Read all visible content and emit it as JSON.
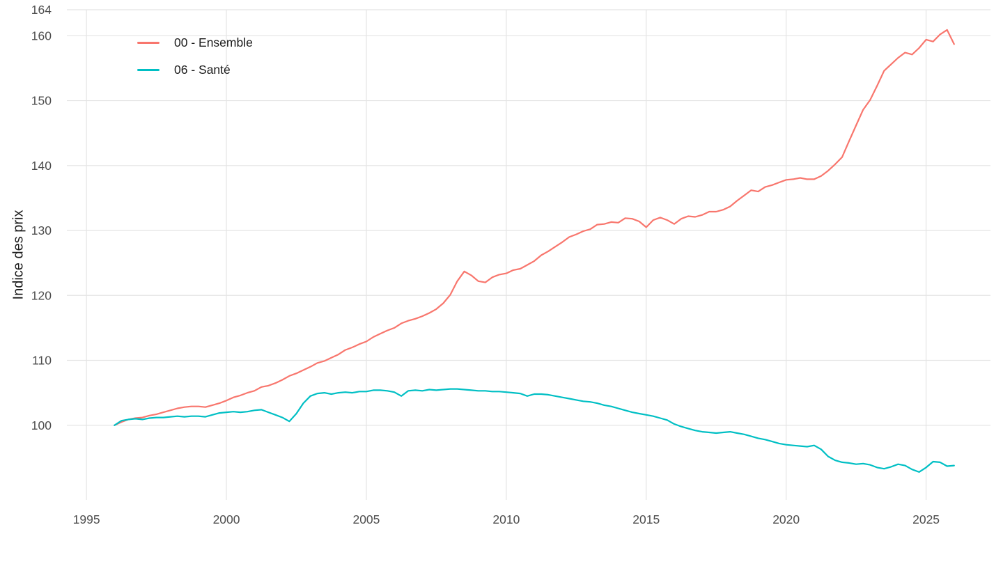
{
  "chart_data": {
    "type": "line",
    "title": "",
    "xlabel": "",
    "ylabel": "Indice des prix",
    "grid": true,
    "legend_position": "top-left-inside",
    "x_ticks": [
      1995,
      2000,
      2005,
      2010,
      2015,
      2020,
      2025
    ],
    "y_ticks": [
      100,
      110,
      120,
      130,
      140,
      150,
      160,
      164
    ],
    "x_range": [
      1994.3,
      2027.3
    ],
    "y_range": [
      88.5,
      164
    ],
    "colors": {
      "background": "#ffffff",
      "grid": "#e4e4e4",
      "tick_text": "#4d4d4d",
      "axis_title_text": "#1a1a1a"
    },
    "series": [
      {
        "name": "00 - Ensemble",
        "color": "#F8766D",
        "points": [
          [
            1996.0,
            100.0
          ],
          [
            1996.25,
            100.5
          ],
          [
            1996.5,
            100.9
          ],
          [
            1996.75,
            101.1
          ],
          [
            1997.0,
            101.2
          ],
          [
            1997.25,
            101.5
          ],
          [
            1997.5,
            101.7
          ],
          [
            1997.75,
            102.0
          ],
          [
            1998.0,
            102.3
          ],
          [
            1998.25,
            102.6
          ],
          [
            1998.5,
            102.8
          ],
          [
            1998.75,
            102.9
          ],
          [
            1999.0,
            102.9
          ],
          [
            1999.25,
            102.8
          ],
          [
            1999.5,
            103.1
          ],
          [
            1999.75,
            103.4
          ],
          [
            2000.0,
            103.8
          ],
          [
            2000.25,
            104.3
          ],
          [
            2000.5,
            104.6
          ],
          [
            2000.75,
            105.0
          ],
          [
            2001.0,
            105.3
          ],
          [
            2001.25,
            105.9
          ],
          [
            2001.5,
            106.1
          ],
          [
            2001.75,
            106.5
          ],
          [
            2002.0,
            107.0
          ],
          [
            2002.25,
            107.6
          ],
          [
            2002.5,
            108.0
          ],
          [
            2002.75,
            108.5
          ],
          [
            2003.0,
            109.0
          ],
          [
            2003.25,
            109.6
          ],
          [
            2003.5,
            109.9
          ],
          [
            2003.75,
            110.4
          ],
          [
            2004.0,
            110.9
          ],
          [
            2004.25,
            111.6
          ],
          [
            2004.5,
            112.0
          ],
          [
            2004.75,
            112.5
          ],
          [
            2005.0,
            112.9
          ],
          [
            2005.25,
            113.6
          ],
          [
            2005.5,
            114.1
          ],
          [
            2005.75,
            114.6
          ],
          [
            2006.0,
            115.0
          ],
          [
            2006.25,
            115.7
          ],
          [
            2006.5,
            116.1
          ],
          [
            2006.75,
            116.4
          ],
          [
            2007.0,
            116.8
          ],
          [
            2007.25,
            117.3
          ],
          [
            2007.5,
            117.9
          ],
          [
            2007.75,
            118.8
          ],
          [
            2008.0,
            120.1
          ],
          [
            2008.25,
            122.2
          ],
          [
            2008.5,
            123.7
          ],
          [
            2008.75,
            123.1
          ],
          [
            2009.0,
            122.2
          ],
          [
            2009.25,
            122.0
          ],
          [
            2009.5,
            122.8
          ],
          [
            2009.75,
            123.2
          ],
          [
            2010.0,
            123.4
          ],
          [
            2010.25,
            123.9
          ],
          [
            2010.5,
            124.1
          ],
          [
            2010.75,
            124.7
          ],
          [
            2011.0,
            125.3
          ],
          [
            2011.25,
            126.2
          ],
          [
            2011.5,
            126.8
          ],
          [
            2011.75,
            127.5
          ],
          [
            2012.0,
            128.2
          ],
          [
            2012.25,
            129.0
          ],
          [
            2012.5,
            129.4
          ],
          [
            2012.75,
            129.9
          ],
          [
            2013.0,
            130.2
          ],
          [
            2013.25,
            130.9
          ],
          [
            2013.5,
            131.0
          ],
          [
            2013.75,
            131.3
          ],
          [
            2014.0,
            131.2
          ],
          [
            2014.25,
            131.9
          ],
          [
            2014.5,
            131.8
          ],
          [
            2014.75,
            131.4
          ],
          [
            2015.0,
            130.5
          ],
          [
            2015.25,
            131.6
          ],
          [
            2015.5,
            132.0
          ],
          [
            2015.75,
            131.6
          ],
          [
            2016.0,
            131.0
          ],
          [
            2016.25,
            131.8
          ],
          [
            2016.5,
            132.2
          ],
          [
            2016.75,
            132.1
          ],
          [
            2017.0,
            132.4
          ],
          [
            2017.25,
            132.9
          ],
          [
            2017.5,
            132.9
          ],
          [
            2017.75,
            133.2
          ],
          [
            2018.0,
            133.7
          ],
          [
            2018.25,
            134.6
          ],
          [
            2018.5,
            135.4
          ],
          [
            2018.75,
            136.2
          ],
          [
            2019.0,
            136.0
          ],
          [
            2019.25,
            136.7
          ],
          [
            2019.5,
            137.0
          ],
          [
            2019.75,
            137.4
          ],
          [
            2020.0,
            137.8
          ],
          [
            2020.25,
            137.9
          ],
          [
            2020.5,
            138.1
          ],
          [
            2020.75,
            137.9
          ],
          [
            2021.0,
            137.9
          ],
          [
            2021.25,
            138.4
          ],
          [
            2021.5,
            139.2
          ],
          [
            2021.75,
            140.2
          ],
          [
            2022.0,
            141.3
          ],
          [
            2022.25,
            143.8
          ],
          [
            2022.5,
            146.2
          ],
          [
            2022.75,
            148.6
          ],
          [
            2023.0,
            150.1
          ],
          [
            2023.25,
            152.3
          ],
          [
            2023.5,
            154.6
          ],
          [
            2023.75,
            155.6
          ],
          [
            2024.0,
            156.6
          ],
          [
            2024.25,
            157.4
          ],
          [
            2024.5,
            157.1
          ],
          [
            2024.75,
            158.1
          ],
          [
            2025.0,
            159.4
          ],
          [
            2025.25,
            159.1
          ],
          [
            2025.5,
            160.2
          ],
          [
            2025.75,
            160.9
          ],
          [
            2026.0,
            158.7
          ]
        ]
      },
      {
        "name": "06 - Santé",
        "color": "#00BFC4",
        "points": [
          [
            1996.0,
            100.0
          ],
          [
            1996.25,
            100.7
          ],
          [
            1996.5,
            100.9
          ],
          [
            1996.75,
            101.0
          ],
          [
            1997.0,
            100.9
          ],
          [
            1997.25,
            101.1
          ],
          [
            1997.5,
            101.2
          ],
          [
            1997.75,
            101.2
          ],
          [
            1998.0,
            101.3
          ],
          [
            1998.25,
            101.4
          ],
          [
            1998.5,
            101.3
          ],
          [
            1998.75,
            101.4
          ],
          [
            1999.0,
            101.4
          ],
          [
            1999.25,
            101.3
          ],
          [
            1999.5,
            101.6
          ],
          [
            1999.75,
            101.9
          ],
          [
            2000.0,
            102.0
          ],
          [
            2000.25,
            102.1
          ],
          [
            2000.5,
            102.0
          ],
          [
            2000.75,
            102.1
          ],
          [
            2001.0,
            102.3
          ],
          [
            2001.25,
            102.4
          ],
          [
            2001.5,
            102.0
          ],
          [
            2001.75,
            101.6
          ],
          [
            2002.0,
            101.2
          ],
          [
            2002.25,
            100.6
          ],
          [
            2002.5,
            101.8
          ],
          [
            2002.75,
            103.4
          ],
          [
            2003.0,
            104.5
          ],
          [
            2003.25,
            104.9
          ],
          [
            2003.5,
            105.0
          ],
          [
            2003.75,
            104.8
          ],
          [
            2004.0,
            105.0
          ],
          [
            2004.25,
            105.1
          ],
          [
            2004.5,
            105.0
          ],
          [
            2004.75,
            105.2
          ],
          [
            2005.0,
            105.2
          ],
          [
            2005.25,
            105.4
          ],
          [
            2005.5,
            105.4
          ],
          [
            2005.75,
            105.3
          ],
          [
            2006.0,
            105.1
          ],
          [
            2006.25,
            104.5
          ],
          [
            2006.5,
            105.3
          ],
          [
            2006.75,
            105.4
          ],
          [
            2007.0,
            105.3
          ],
          [
            2007.25,
            105.5
          ],
          [
            2007.5,
            105.4
          ],
          [
            2007.75,
            105.5
          ],
          [
            2008.0,
            105.6
          ],
          [
            2008.25,
            105.6
          ],
          [
            2008.5,
            105.5
          ],
          [
            2008.75,
            105.4
          ],
          [
            2009.0,
            105.3
          ],
          [
            2009.25,
            105.3
          ],
          [
            2009.5,
            105.2
          ],
          [
            2009.75,
            105.2
          ],
          [
            2010.0,
            105.1
          ],
          [
            2010.25,
            105.0
          ],
          [
            2010.5,
            104.9
          ],
          [
            2010.75,
            104.5
          ],
          [
            2011.0,
            104.8
          ],
          [
            2011.25,
            104.8
          ],
          [
            2011.5,
            104.7
          ],
          [
            2011.75,
            104.5
          ],
          [
            2012.0,
            104.3
          ],
          [
            2012.25,
            104.1
          ],
          [
            2012.5,
            103.9
          ],
          [
            2012.75,
            103.7
          ],
          [
            2013.0,
            103.6
          ],
          [
            2013.25,
            103.4
          ],
          [
            2013.5,
            103.1
          ],
          [
            2013.75,
            102.9
          ],
          [
            2014.0,
            102.6
          ],
          [
            2014.25,
            102.3
          ],
          [
            2014.5,
            102.0
          ],
          [
            2014.75,
            101.8
          ],
          [
            2015.0,
            101.6
          ],
          [
            2015.25,
            101.4
          ],
          [
            2015.5,
            101.1
          ],
          [
            2015.75,
            100.8
          ],
          [
            2016.0,
            100.2
          ],
          [
            2016.25,
            99.8
          ],
          [
            2016.5,
            99.5
          ],
          [
            2016.75,
            99.2
          ],
          [
            2017.0,
            99.0
          ],
          [
            2017.25,
            98.9
          ],
          [
            2017.5,
            98.8
          ],
          [
            2017.75,
            98.9
          ],
          [
            2018.0,
            99.0
          ],
          [
            2018.25,
            98.8
          ],
          [
            2018.5,
            98.6
          ],
          [
            2018.75,
            98.3
          ],
          [
            2019.0,
            98.0
          ],
          [
            2019.25,
            97.8
          ],
          [
            2019.5,
            97.5
          ],
          [
            2019.75,
            97.2
          ],
          [
            2020.0,
            97.0
          ],
          [
            2020.25,
            96.9
          ],
          [
            2020.5,
            96.8
          ],
          [
            2020.75,
            96.7
          ],
          [
            2021.0,
            96.9
          ],
          [
            2021.25,
            96.3
          ],
          [
            2021.5,
            95.2
          ],
          [
            2021.75,
            94.6
          ],
          [
            2022.0,
            94.3
          ],
          [
            2022.25,
            94.2
          ],
          [
            2022.5,
            94.0
          ],
          [
            2022.75,
            94.1
          ],
          [
            2023.0,
            93.9
          ],
          [
            2023.25,
            93.5
          ],
          [
            2023.5,
            93.3
          ],
          [
            2023.75,
            93.6
          ],
          [
            2024.0,
            94.0
          ],
          [
            2024.25,
            93.8
          ],
          [
            2024.5,
            93.2
          ],
          [
            2024.75,
            92.8
          ],
          [
            2025.0,
            93.5
          ],
          [
            2025.25,
            94.4
          ],
          [
            2025.5,
            94.3
          ],
          [
            2025.75,
            93.7
          ],
          [
            2026.0,
            93.8
          ]
        ]
      }
    ]
  }
}
